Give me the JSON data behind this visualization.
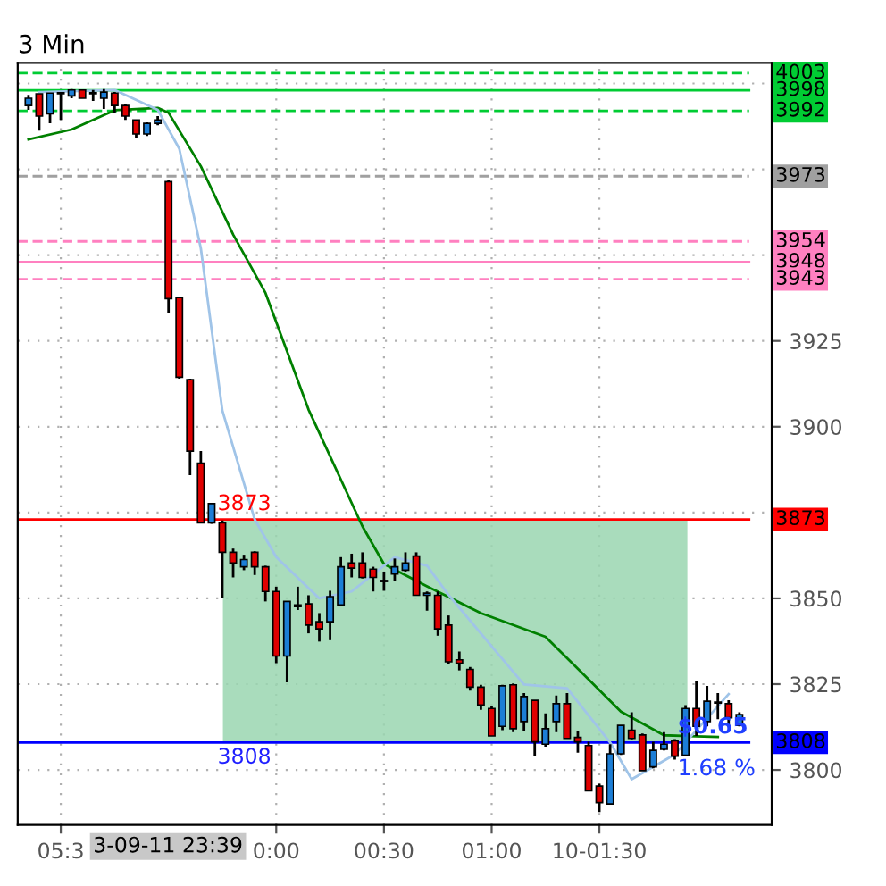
{
  "chart_data": {
    "type": "candlestick",
    "title": "3 Min",
    "categories": [
      null,
      null,
      null,
      "05:3",
      null,
      null,
      null,
      null,
      null,
      null,
      null,
      null,
      null,
      null,
      null,
      null,
      null,
      null,
      null,
      null,
      null,
      null,
      null,
      "0:00",
      null,
      null,
      null,
      null,
      null,
      null,
      null,
      null,
      null,
      "00:30",
      null,
      null,
      null,
      null,
      null,
      null,
      null,
      null,
      null,
      "01:00",
      null,
      null,
      null,
      null,
      null,
      null,
      null,
      null,
      null,
      "10-01:30",
      null,
      null,
      null,
      null,
      null,
      null,
      null,
      null,
      null,
      null,
      null,
      null,
      null
    ],
    "ohlc": [
      [
        3993.6,
        3996.7,
        3992.3,
        3995.7
      ],
      [
        3997,
        3997,
        3986.3,
        3990.5
      ],
      [
        3991.2,
        3997.2,
        3988.4,
        3997.2
      ],
      [
        3997,
        3997.5,
        3989.4,
        3997.3
      ],
      [
        3996.4,
        3998.4,
        3995.7,
        3998.1
      ],
      [
        3998.1,
        3998.1,
        3995.7,
        3995.7
      ],
      [
        3997,
        3998.1,
        3994.9,
        3997.2
      ],
      [
        3995.7,
        3998.4,
        3992.6,
        3997.5
      ],
      [
        3997.2,
        3997.5,
        3991.5,
        3993.6
      ],
      [
        3993.6,
        3994,
        3989.4,
        3990.5
      ],
      [
        3989.4,
        3989.4,
        3984.2,
        3985.3
      ],
      [
        3985.3,
        3988.7,
        3984.7,
        3988.4
      ],
      [
        3988.4,
        3990.5,
        3987.8,
        3989.4
      ],
      [
        3971.4,
        3972,
        3933.2,
        3937.3
      ],
      [
        3937.6,
        3937.6,
        3914,
        3914.4
      ],
      [
        3913.7,
        3914,
        3885.9,
        3892.9
      ],
      [
        3889.4,
        3892.9,
        3872,
        3872
      ],
      [
        3872,
        3877.6,
        3871.7,
        3877.6
      ],
      [
        3872,
        3872.7,
        3850.2,
        3863.4
      ],
      [
        3863.4,
        3864.5,
        3856.1,
        3860.3
      ],
      [
        3859.2,
        3862.7,
        3858.2,
        3861.3
      ],
      [
        3863.4,
        3863.7,
        3856.8,
        3859.2
      ],
      [
        3859.2,
        3859.5,
        3849.1,
        3852
      ],
      [
        3852,
        3853.4,
        3831.1,
        3833.2
      ],
      [
        3833.2,
        3849.1,
        3825.5,
        3849.1
      ],
      [
        3848.1,
        3853.4,
        3846.6,
        3847.6
      ],
      [
        3848.4,
        3850.9,
        3839.8,
        3842.2
      ],
      [
        3843.2,
        3845.7,
        3837.4,
        3841.1
      ],
      [
        3843.2,
        3852.2,
        3837.8,
        3850.5
      ],
      [
        3848.1,
        3862,
        3848,
        3859.2
      ],
      [
        3860.3,
        3863,
        3856.1,
        3858.8
      ],
      [
        3860.3,
        3863.4,
        3855.8,
        3856.1
      ],
      [
        3858.5,
        3859.2,
        3852,
        3856.1
      ],
      [
        3855.1,
        3857.8,
        3852.2,
        3854.9
      ],
      [
        3857.1,
        3861.6,
        3855.1,
        3859.2
      ],
      [
        3858.2,
        3863.4,
        3857.8,
        3860.3
      ],
      [
        3862.3,
        3863.4,
        3850.9,
        3850.9
      ],
      [
        3850.9,
        3852,
        3846.4,
        3851.5
      ],
      [
        3850.9,
        3852,
        3839.1,
        3841.1
      ],
      [
        3842.2,
        3845,
        3830.8,
        3831.5
      ],
      [
        3832.1,
        3834.5,
        3829,
        3831.1
      ],
      [
        3829.3,
        3830,
        3823.1,
        3824.1
      ],
      [
        3824.1,
        3824.8,
        3817.5,
        3818.9
      ],
      [
        3817.9,
        3818.6,
        3809.9,
        3809.9
      ],
      [
        3812.7,
        3824.8,
        3811.6,
        3824.5
      ],
      [
        3824.8,
        3825.2,
        3811,
        3812
      ],
      [
        3814.1,
        3822.4,
        3811.3,
        3821.4
      ],
      [
        3820.3,
        3820.3,
        3804,
        3808.2
      ],
      [
        3807.5,
        3816.5,
        3806.8,
        3812
      ],
      [
        3814.1,
        3821.7,
        3811,
        3819.3
      ],
      [
        3819.3,
        3822.4,
        3809.2,
        3809.2
      ],
      [
        3809.5,
        3811.3,
        3805,
        3808.2
      ],
      [
        3807.1,
        3808.2,
        3793.9,
        3793.9
      ],
      [
        3795.3,
        3796,
        3787.7,
        3790.5
      ],
      [
        3790.1,
        3807.5,
        3790.1,
        3804.7
      ],
      [
        3804.7,
        3813,
        3804.4,
        3813
      ],
      [
        3811.6,
        3816.8,
        3808.9,
        3809.2
      ],
      [
        3810.2,
        3810.6,
        3799.8,
        3799.8
      ],
      [
        3800.9,
        3808.2,
        3800.5,
        3805.7
      ],
      [
        3806,
        3811,
        3805.7,
        3807.5
      ],
      [
        3808.5,
        3809,
        3803,
        3804
      ],
      [
        3804.3,
        3818.9,
        3804,
        3817.9
      ],
      [
        3817.9,
        3825.9,
        3809.9,
        3812.7
      ],
      [
        3814.1,
        3824.5,
        3812.7,
        3820
      ],
      [
        3819.7,
        3822.4,
        3814.8,
        3819.5
      ],
      [
        3819.3,
        3820.3,
        3812.7,
        3815.2
      ],
      [
        3813,
        3816.8,
        3812.7,
        3816.1
      ]
    ],
    "colors": [
      "#1c7ed6",
      "#e00000",
      "#1c7ed6",
      "#1c7ed6",
      "#1c7ed6",
      "#e00000",
      "#1c7ed6",
      "#1c7ed6",
      "#e00000",
      "#e00000",
      "#e00000",
      "#1c7ed6",
      "#1c7ed6",
      "#e00000",
      "#e00000",
      "#e00000",
      "#e00000",
      "#1c7ed6",
      "#e00000",
      "#e00000",
      "#1c7ed6",
      "#e00000",
      "#e00000",
      "#e00000",
      "#1c7ed6",
      "#e00000",
      "#e00000",
      "#e00000",
      "#1c7ed6",
      "#1c7ed6",
      "#e00000",
      "#e00000",
      "#e00000",
      "#e00000",
      "#1c7ed6",
      "#1c7ed6",
      "#e00000",
      "#1c7ed6",
      "#e00000",
      "#e00000",
      "#e00000",
      "#e00000",
      "#e00000",
      "#e00000",
      "#1c7ed6",
      "#e00000",
      "#1c7ed6",
      "#e00000",
      "#1c7ed6",
      "#1c7ed6",
      "#e00000",
      "#e00000",
      "#e00000",
      "#e00000",
      "#1c7ed6",
      "#1c7ed6",
      "#e00000",
      "#e00000",
      "#1c7ed6",
      "#1c7ed6",
      "#e00000",
      "#1c7ed6",
      "#e00000",
      "#1c7ed6",
      "#e00000",
      "#e00000",
      "#1c7ed6"
    ],
    "series": [
      {
        "type": "line",
        "color": "#008000",
        "values": [
          3983.7,
          null,
          null,
          null,
          3986.6,
          null,
          null,
          null,
          3992.2,
          null,
          null,
          null,
          3992.9,
          3991.5,
          null,
          null,
          3975.9,
          null,
          null,
          3956,
          null,
          null,
          3939,
          null,
          null,
          null,
          3905,
          null,
          null,
          null,
          null,
          3871,
          null,
          3860,
          null,
          null,
          null,
          3853.5,
          null,
          null,
          null,
          null,
          3845.7,
          null,
          null,
          null,
          null,
          null,
          3838.8,
          null,
          null,
          3829.5,
          null,
          null,
          null,
          3817,
          null,
          null,
          null,
          3810.1,
          null,
          null,
          null,
          null,
          3809.6,
          null,
          null
        ]
      },
      {
        "type": "line",
        "color": "#a0c4e8",
        "values": [
          null,
          3997.5,
          null,
          null,
          null,
          null,
          null,
          null,
          3998.1,
          null,
          null,
          null,
          3992.3,
          null,
          3981,
          null,
          3952,
          null,
          3904.7,
          null,
          null,
          3873,
          null,
          3862,
          null,
          null,
          null,
          3850,
          null,
          null,
          3852,
          null,
          null,
          null,
          3862,
          null,
          null,
          3859.5,
          null,
          3851,
          null,
          null,
          null,
          3836,
          null,
          null,
          3824.9,
          null,
          null,
          null,
          3823.8,
          null,
          null,
          null,
          3808,
          null,
          3797.3,
          null,
          null,
          null,
          3804.5,
          null,
          null,
          null,
          null,
          3822.1,
          null
        ]
      }
    ],
    "ylim": [
      3784,
      4006
    ],
    "yticks": [
      3800,
      3825,
      3850,
      {
        "value": 3875,
        "label": null
      },
      3900,
      3925,
      {
        "value": 3950,
        "label": null
      },
      {
        "value": 3975,
        "label": null
      },
      {
        "value": 4000,
        "label": null
      }
    ],
    "grid": true,
    "ref_lines": [
      {
        "axis": "y",
        "value": 4003,
        "label": "4003",
        "color": "#00cc33",
        "line_style": "dashed"
      },
      {
        "axis": "y",
        "value": 3998,
        "label": "3998",
        "color": "#00cc33",
        "line_style": "solid"
      },
      {
        "axis": "y",
        "value": 3992,
        "label": "3992",
        "color": "#00cc33",
        "line_style": "dashed"
      },
      {
        "axis": "y",
        "value": 3973,
        "label": "3973",
        "color": "#a0a0a0",
        "line_style": "dashed"
      },
      {
        "axis": "y",
        "value": 3954,
        "label": "3954",
        "color": "#ff80c0",
        "line_style": "dashed"
      },
      {
        "axis": "y",
        "value": 3948,
        "label": "3948",
        "color": "#ff80c0",
        "line_style": "solid"
      },
      {
        "axis": "y",
        "value": 3943,
        "label": "3943",
        "color": "#ff80c0",
        "line_style": "dashed"
      },
      {
        "axis": "y",
        "value": 3873,
        "label": "3873",
        "color": "#ff0000",
        "line_style": "solid"
      },
      {
        "axis": "y",
        "value": 3808,
        "label": "3808",
        "color": "#0000ff",
        "line_style": "solid"
      }
    ],
    "bands": [
      {
        "axis": "y",
        "from": 3808,
        "to": 3873,
        "color": "#9ad6b0"
      }
    ],
    "annotations": [
      {
        "text": "3873",
        "y": 3873
      },
      {
        "text": "3808",
        "y": 3808
      },
      "$0.65",
      "1.68 %",
      "3-09-11 23:39"
    ]
  }
}
